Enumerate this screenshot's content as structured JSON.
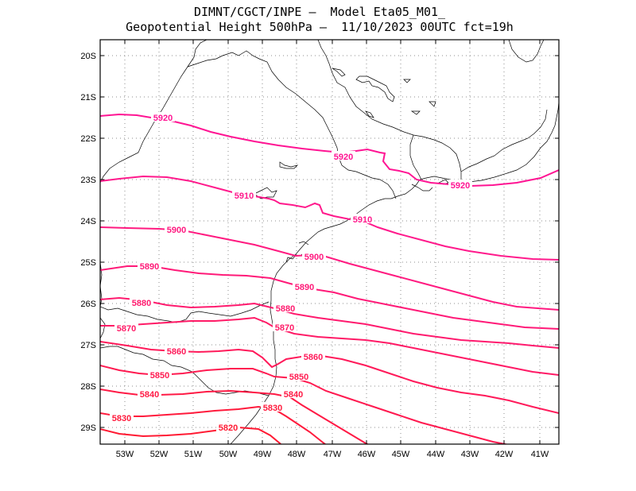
{
  "header": {
    "line1": "DIMNT/CGCT/INPE –  Model Eta05_M01_",
    "line2": "Geopotential Height 500hPa –  11/10/2023 00UTC fct=19h"
  },
  "lat_labels": [
    "20S",
    "21S",
    "22S",
    "23S",
    "24S",
    "25S",
    "26S",
    "27S",
    "28S",
    "29S"
  ],
  "lon_labels": [
    "53W",
    "52W",
    "51W",
    "50W",
    "49W",
    "48W",
    "47W",
    "46W",
    "45W",
    "44W",
    "43W",
    "42W",
    "41W"
  ],
  "contours": [
    {
      "value": "5920",
      "color": "#ff1493",
      "labels": [
        "5920",
        "5920",
        "5920"
      ]
    },
    {
      "value": "5910",
      "color": "#ff1a8c",
      "labels": [
        "5910",
        "5910"
      ]
    },
    {
      "value": "5900",
      "color": "#ff1a80",
      "labels": [
        "5900",
        "5900"
      ]
    },
    {
      "value": "5890",
      "color": "#ff1a78",
      "labels": [
        "5890",
        "5890"
      ]
    },
    {
      "value": "5880",
      "color": "#ff1a6e",
      "labels": [
        "5880",
        "5880"
      ]
    },
    {
      "value": "5870",
      "color": "#ff1a66",
      "labels": [
        "5870",
        "5870"
      ]
    },
    {
      "value": "5860",
      "color": "#ff1a5a",
      "labels": [
        "5860",
        "5860"
      ]
    },
    {
      "value": "5850",
      "color": "#ff1a50",
      "labels": [
        "5850",
        "5850"
      ]
    },
    {
      "value": "5840",
      "color": "#ff1a45",
      "labels": [
        "5840",
        "5840"
      ]
    },
    {
      "value": "5830",
      "color": "#ff1a3c",
      "labels": [
        "5830",
        "5830"
      ]
    },
    {
      "value": "5820",
      "color": "#ff1a33",
      "labels": [
        "5820"
      ]
    }
  ]
}
